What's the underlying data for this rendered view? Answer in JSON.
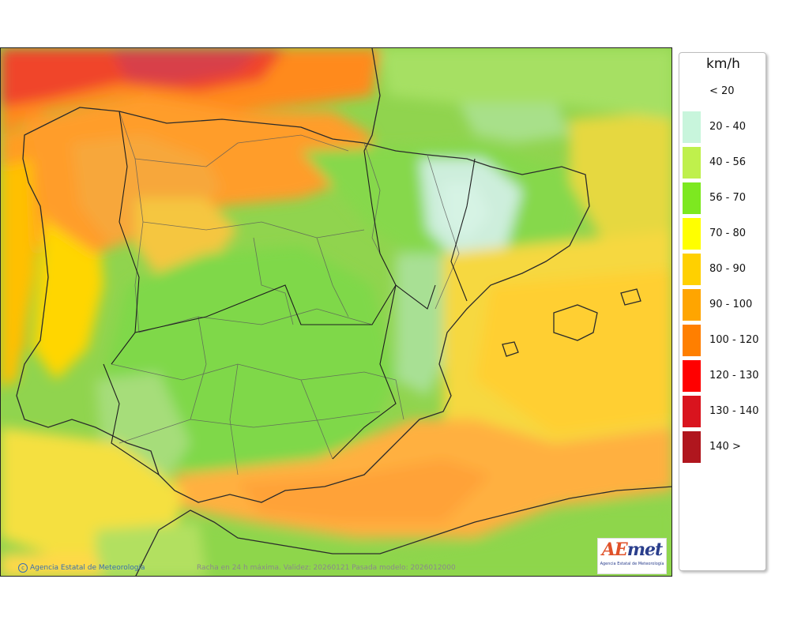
{
  "map": {
    "credit": "Agencia Estatal de Meteorología",
    "caption": "Racha en 24 h máxima. Validez: 20260121 Pasada modelo: 2026012000",
    "logo_text": "AEmet",
    "logo_subtext": "Agencia Estatal de Meteorología"
  },
  "legend": {
    "unit": "km/h",
    "items": [
      {
        "label": "< 20",
        "color": "#ffffff"
      },
      {
        "label": "20 - 40",
        "color": "#c8f5dc"
      },
      {
        "label": "40 - 56",
        "color": "#bff04c"
      },
      {
        "label": "56 - 70",
        "color": "#7de820"
      },
      {
        "label": "70 - 80",
        "color": "#ffff00"
      },
      {
        "label": "80 - 90",
        "color": "#ffd000"
      },
      {
        "label": "90 - 100",
        "color": "#ffa500"
      },
      {
        "label": "100 - 120",
        "color": "#ff7f00"
      },
      {
        "label": "120 - 130",
        "color": "#ff0000"
      },
      {
        "label": "130 - 140",
        "color": "#d9141e"
      },
      {
        "label": "140 >",
        "color": "#b0161e"
      }
    ]
  }
}
